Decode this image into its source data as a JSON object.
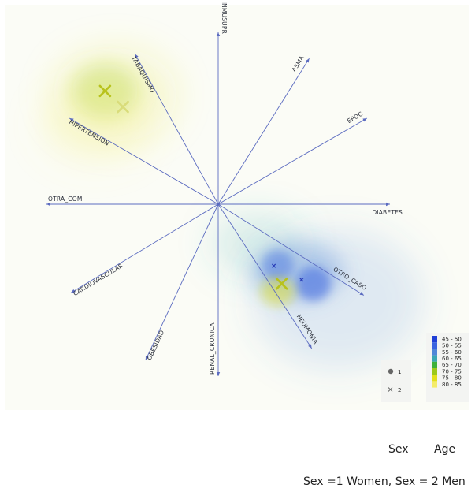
{
  "header_fragment": "",
  "captions": {
    "sex": "Sex",
    "age": "Age",
    "note": "Sex =1 Women, Sex = 2 Men"
  },
  "colors": {
    "axis": "#5b6bc0",
    "marker_women": "#2a3fb8",
    "marker_men": "#b8c21c",
    "marker_men_light": "#d9dc7a"
  },
  "chart_data": {
    "type": "scatter",
    "subtype": "biplot-with-heatmap",
    "axes": [
      {
        "name": "INMUSUPR",
        "angle_deg": 90
      },
      {
        "name": "ASMA",
        "angle_deg": 58
      },
      {
        "name": "EPOC",
        "angle_deg": 30
      },
      {
        "name": "DIABETES",
        "angle_deg": 0
      },
      {
        "name": "OTRO_CASO",
        "angle_deg": -32
      },
      {
        "name": "NEUMONIA",
        "angle_deg": -57
      },
      {
        "name": "RENAL_CRONICA",
        "angle_deg": -90
      },
      {
        "name": "OBESIDAD",
        "angle_deg": -115
      },
      {
        "name": "CARDIOVASCULAR",
        "angle_deg": -149
      },
      {
        "name": "OTRA_COM",
        "angle_deg": 180
      },
      {
        "name": "HIPERTENSION",
        "angle_deg": 150
      },
      {
        "name": "TABAQUISMO",
        "angle_deg": 119
      }
    ],
    "series": [
      {
        "name": "1",
        "marker": "circle",
        "points": [
          {
            "x": 0.28,
            "y": -0.31
          },
          {
            "x": 0.42,
            "y": -0.38
          }
        ]
      },
      {
        "name": "2",
        "marker": "x",
        "points": [
          {
            "x": -0.57,
            "y": 0.57
          },
          {
            "x": -0.48,
            "y": 0.49
          },
          {
            "x": 0.32,
            "y": -0.4
          }
        ]
      }
    ],
    "heatmap_legend": {
      "title": "",
      "placement": "bottom-right",
      "bins": [
        {
          "label": "45 - 50",
          "color": "#1f3fd6"
        },
        {
          "label": "50 - 55",
          "color": "#3a64e0"
        },
        {
          "label": "55 - 60",
          "color": "#4f86d8"
        },
        {
          "label": "60 - 65",
          "color": "#3aa6b4"
        },
        {
          "label": "65 - 70",
          "color": "#3db13a"
        },
        {
          "label": "70 - 75",
          "color": "#9cc91a"
        },
        {
          "label": "75 - 80",
          "color": "#e2e01c"
        },
        {
          "label": "80 - 85",
          "color": "#f4ec6a"
        }
      ]
    },
    "series_legend": {
      "placement": "bottom-right",
      "entries": [
        {
          "label": "1",
          "marker": "circle"
        },
        {
          "label": "2",
          "marker": "x"
        }
      ]
    },
    "grid": false,
    "title": "",
    "xlabel": "",
    "ylabel": ""
  }
}
